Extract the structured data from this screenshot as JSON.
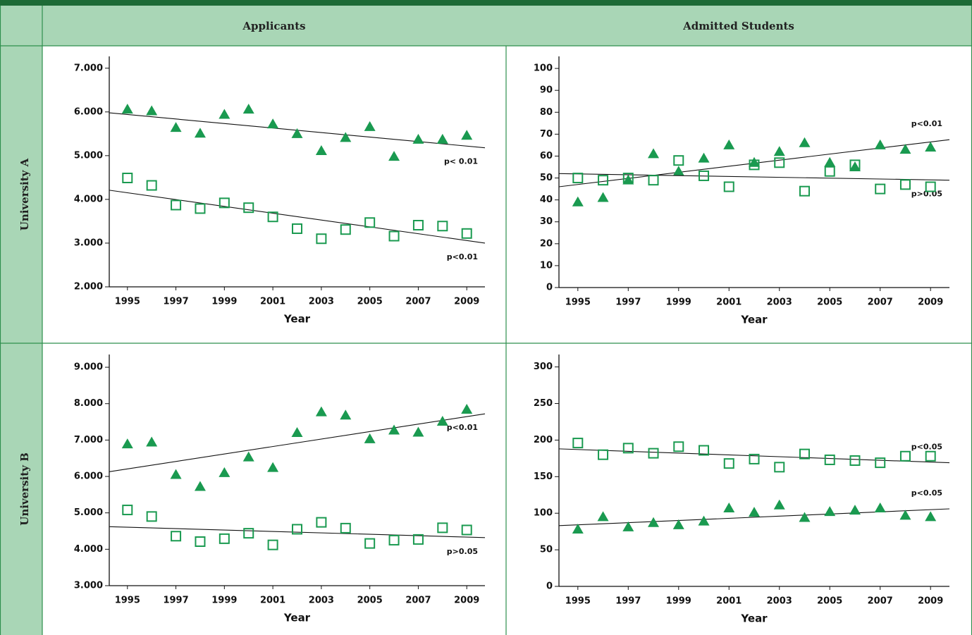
{
  "table": {
    "columns": [
      "Applicants",
      "Admitted Students"
    ],
    "rows": [
      "University A",
      "University B"
    ]
  },
  "chart_data": [
    {
      "type": "scatter",
      "x_label": "Year",
      "x": [
        1995,
        1996,
        1997,
        1998,
        1999,
        2000,
        2001,
        2002,
        2003,
        2004,
        2005,
        2006,
        2007,
        2008,
        2009
      ],
      "xlim": [
        1994.25,
        2009.75
      ],
      "xticks": [
        1995,
        1997,
        1999,
        2001,
        2003,
        2005,
        2007,
        2009
      ],
      "ylim": [
        2000,
        7270
      ],
      "yticks": [
        {
          "value": 2000,
          "label": "2.000"
        },
        {
          "value": 3000,
          "label": "3.000"
        },
        {
          "value": 4000,
          "label": "4.000"
        },
        {
          "value": 5000,
          "label": "5.000"
        },
        {
          "value": 6000,
          "label": "6.000"
        },
        {
          "value": 7000,
          "label": "7.000"
        }
      ],
      "series": [
        {
          "marker": "triangle",
          "color": "#1a9a50",
          "values": [
            6060,
            6020,
            5640,
            5510,
            5940,
            6060,
            5720,
            5500,
            5110,
            5410,
            5660,
            4980,
            5370,
            5370,
            5460
          ],
          "trend": [
            5980,
            5180
          ],
          "annotation": "p< 0.01",
          "annotation_position": "below"
        },
        {
          "marker": "square",
          "color": "#1a9a50",
          "values": [
            4490,
            4320,
            3870,
            3790,
            3920,
            3810,
            3600,
            3330,
            3100,
            3310,
            3470,
            3160,
            3410,
            3390,
            3220
          ],
          "trend": [
            4210,
            3000
          ],
          "annotation": "p<0.01",
          "annotation_position": "below"
        }
      ]
    },
    {
      "type": "scatter",
      "x_label": "Year",
      "x": [
        1995,
        1996,
        1997,
        1998,
        1999,
        2000,
        2001,
        2002,
        2003,
        2004,
        2005,
        2006,
        2007,
        2008,
        2009
      ],
      "xlim": [
        1994.25,
        2009.75
      ],
      "xticks": [
        1995,
        1997,
        1999,
        2001,
        2003,
        2005,
        2007,
        2009
      ],
      "ylim": [
        0,
        105.5
      ],
      "yticks": [
        0,
        10,
        20,
        30,
        40,
        50,
        60,
        70,
        80,
        90,
        100
      ],
      "series": [
        {
          "marker": "triangle",
          "color": "#1a9a50",
          "values": [
            39,
            41,
            49,
            61,
            53,
            59,
            65,
            57,
            62,
            66,
            57,
            55,
            65,
            63,
            64
          ],
          "trend": [
            46,
            67.5
          ],
          "annotation": "p<0.01",
          "annotation_position": "above"
        },
        {
          "marker": "square",
          "color": "#1a9a50",
          "values": [
            50,
            49,
            50,
            49,
            58,
            51,
            46,
            56,
            57,
            44,
            53,
            56,
            45,
            47,
            46
          ],
          "trend": [
            52,
            49
          ],
          "annotation": "p>0.05",
          "annotation_position": "below"
        }
      ]
    },
    {
      "type": "scatter",
      "x_label": "Year",
      "x": [
        1995,
        1996,
        1997,
        1998,
        1999,
        2000,
        2001,
        2002,
        2003,
        2004,
        2005,
        2006,
        2007,
        2008,
        2009
      ],
      "xlim": [
        1994.25,
        2009.75
      ],
      "xticks": [
        1995,
        1997,
        1999,
        2001,
        2003,
        2005,
        2007,
        2009
      ],
      "ylim": [
        3000,
        9350
      ],
      "yticks": [
        {
          "value": 3000,
          "label": "3.000"
        },
        {
          "value": 4000,
          "label": "4.000"
        },
        {
          "value": 5000,
          "label": "5.000"
        },
        {
          "value": 6000,
          "label": "6.000"
        },
        {
          "value": 7000,
          "label": "7.000"
        },
        {
          "value": 8000,
          "label": "8.000"
        },
        {
          "value": 9000,
          "label": "9.000"
        }
      ],
      "series": [
        {
          "marker": "triangle",
          "color": "#1a9a50",
          "values": [
            6890,
            6940,
            6050,
            5720,
            6100,
            6530,
            6240,
            7200,
            7770,
            7680,
            7030,
            7270,
            7210,
            7510,
            7840
          ],
          "trend": [
            6130,
            7720
          ],
          "annotation": "p<0.01",
          "annotation_position": "below"
        },
        {
          "marker": "square",
          "color": "#1a9a50",
          "values": [
            5080,
            4900,
            4360,
            4210,
            4290,
            4440,
            4120,
            4550,
            4740,
            4580,
            4160,
            4250,
            4270,
            4590,
            4530
          ],
          "trend": [
            4620,
            4320
          ],
          "annotation": "p>0.05",
          "annotation_position": "below"
        }
      ]
    },
    {
      "type": "scatter",
      "x_label": "Year",
      "x": [
        1995,
        1996,
        1997,
        1998,
        1999,
        2000,
        2001,
        2002,
        2003,
        2004,
        2005,
        2006,
        2007,
        2008,
        2009
      ],
      "xlim": [
        1994.25,
        2009.75
      ],
      "xticks": [
        1995,
        1997,
        1999,
        2001,
        2003,
        2005,
        2007,
        2009
      ],
      "ylim": [
        0,
        317
      ],
      "yticks": [
        0,
        50,
        100,
        150,
        200,
        250,
        300
      ],
      "series": [
        {
          "marker": "square",
          "color": "#1a9a50",
          "values": [
            196,
            180,
            189,
            182,
            191,
            186,
            168,
            174,
            163,
            181,
            173,
            172,
            169,
            178,
            178
          ],
          "trend": [
            188,
            169
          ],
          "annotation": "p<0.05",
          "annotation_position": "above"
        },
        {
          "marker": "triangle",
          "color": "#1a9a50",
          "values": [
            78,
            95,
            81,
            87,
            84,
            89,
            107,
            101,
            111,
            94,
            102,
            104,
            107,
            97,
            95
          ],
          "trend": [
            83,
            106
          ],
          "annotation": "p<0.05",
          "annotation_position": "above"
        }
      ]
    }
  ]
}
